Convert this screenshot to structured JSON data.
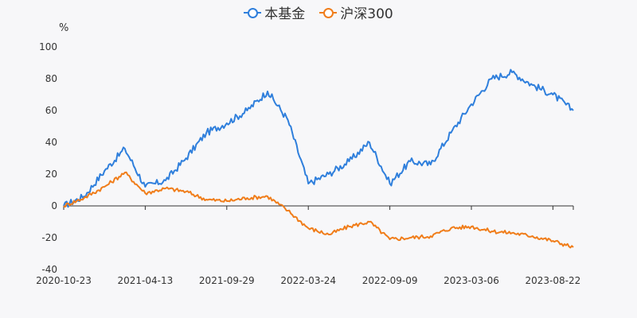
{
  "legend": {
    "fund_label": "本基金",
    "index_label": "沪深300"
  },
  "colors": {
    "fund": "#2f7fdc",
    "index": "#f07d1a",
    "axis": "#333333"
  },
  "chart_data": {
    "type": "line",
    "unit": "%",
    "ylim": [
      -40,
      100
    ],
    "yticks": [
      -40,
      -20,
      0,
      20,
      40,
      60,
      80,
      100
    ],
    "x": [
      "2020-10-23",
      "2020-12-04",
      "2021-01-15",
      "2021-02-26",
      "2021-04-13",
      "2021-05-25",
      "2021-07-06",
      "2021-08-17",
      "2021-09-29",
      "2021-11-10",
      "2021-12-22",
      "2022-02-02",
      "2022-03-24",
      "2022-05-05",
      "2022-06-16",
      "2022-07-28",
      "2022-09-09",
      "2022-10-21",
      "2022-12-02",
      "2023-01-13",
      "2023-03-06",
      "2023-04-17",
      "2023-05-29",
      "2023-07-10",
      "2023-08-22",
      "2023-09-20"
    ],
    "xticks": [
      "2020-10-23",
      "2021-04-13",
      "2021-09-29",
      "2022-03-24",
      "2022-09-09",
      "2023-03-06",
      "2023-08-22"
    ],
    "series": [
      {
        "name": "本基金",
        "values": [
          0,
          6,
          22,
          36,
          12,
          16,
          30,
          46,
          52,
          60,
          72,
          54,
          14,
          20,
          28,
          40,
          14,
          28,
          26,
          46,
          64,
          80,
          84,
          76,
          70,
          60
        ]
      },
      {
        "name": "沪深300",
        "values": [
          0,
          5,
          12,
          21,
          8,
          11,
          9,
          4,
          3,
          5,
          6,
          -3,
          -14,
          -18,
          -13,
          -10,
          -21,
          -20,
          -19,
          -14,
          -13,
          -16,
          -17,
          -19,
          -22,
          -26
        ]
      }
    ]
  }
}
